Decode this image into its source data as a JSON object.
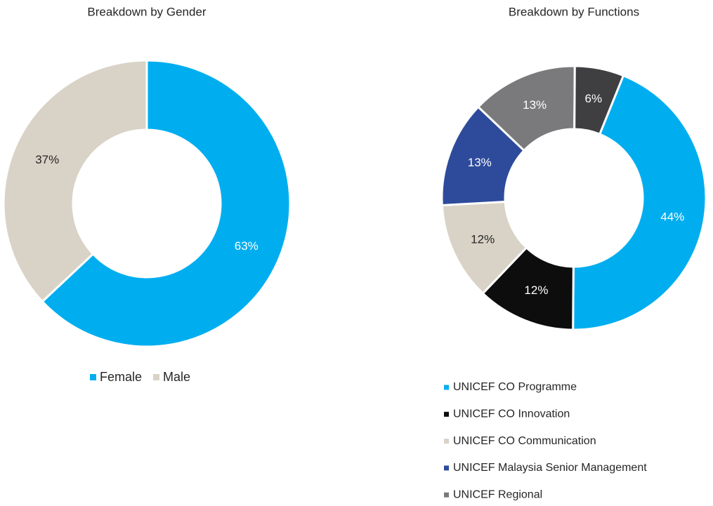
{
  "chart_data": [
    {
      "type": "donut",
      "title": "Breakdown by Gender",
      "first_slice_angle": 0,
      "legend": "bottom",
      "categories": [
        "Female",
        "Male"
      ],
      "values": [
        63,
        37
      ],
      "value_labels": [
        "63%",
        "37%"
      ],
      "colors": [
        "#00aeef",
        "#d9d3c7"
      ]
    },
    {
      "type": "donut",
      "title": "Breakdown by Functions",
      "first_slice_angle": 22,
      "legend": "bottom-list",
      "categories": [
        "UNICEF CO Programme",
        "UNICEF CO Innovation",
        "UNICEF CO Communication",
        "UNICEF Malaysia Senior Management",
        "UNICEF Regional",
        null
      ],
      "values": [
        44,
        12,
        12,
        13,
        13,
        6
      ],
      "value_labels": [
        "44%",
        "12%",
        "12%",
        "13%",
        "13%",
        "6%"
      ],
      "colors": [
        "#00aeef",
        "#0d0d0d",
        "#d9d3c7",
        "#2e4b9b",
        "#7a7a7c",
        "#3f3f41"
      ]
    }
  ]
}
